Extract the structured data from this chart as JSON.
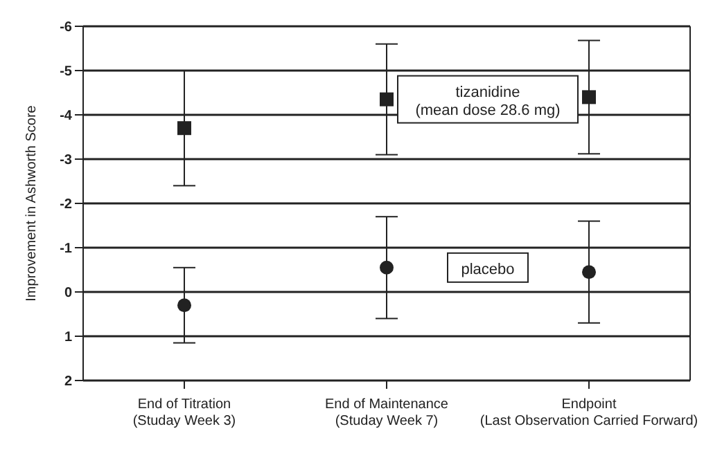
{
  "chart_data": {
    "type": "scatter",
    "ylabel": "Improvement in Ashworth Score",
    "categories": [
      "End of Titration\n(Studay Week 3)",
      "End of Maintenance\n(Studay Week 7)",
      "Endpoint\n(Last Observation Carried Forward)"
    ],
    "series": [
      {
        "name": "tizanidine\n(mean dose 28.6 mg)",
        "color": "#222222",
        "marker": "square",
        "values": [
          -3.7,
          -4.35,
          -4.4
        ],
        "errors": [
          1.3,
          1.25,
          1.28
        ]
      },
      {
        "name": "placebo",
        "color": "#222222",
        "marker": "circle",
        "values": [
          0.3,
          -0.55,
          -0.45
        ],
        "errors": [
          0.85,
          1.15,
          1.15
        ]
      }
    ],
    "ylim": [
      2,
      -6
    ],
    "yticks": [
      -6,
      -5,
      -4,
      -3,
      -2,
      -1,
      0,
      1,
      2
    ],
    "grid": "y"
  }
}
